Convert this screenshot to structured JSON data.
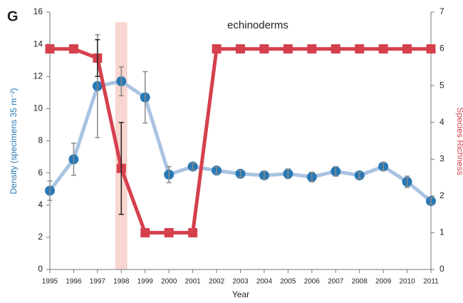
{
  "chart_data": {
    "type": "line",
    "panel_label": "G",
    "title": "echinoderms",
    "x_label": "Year",
    "y_label": "Density (specimens 35 m⁻²)",
    "y2_label": "Species Richness",
    "x": [
      1995,
      1996,
      1997,
      1998,
      1999,
      2000,
      2001,
      2002,
      2003,
      2004,
      2005,
      2006,
      2007,
      2008,
      2009,
      2010,
      2011
    ],
    "xlim": [
      1995,
      2011
    ],
    "xticks": [
      1995,
      1996,
      1997,
      1998,
      1999,
      2000,
      2001,
      2002,
      2003,
      2004,
      2005,
      2006,
      2007,
      2008,
      2009,
      2010,
      2011
    ],
    "ylim": [
      0,
      16
    ],
    "yticks": [
      0,
      2,
      4,
      6,
      8,
      10,
      12,
      14,
      16
    ],
    "y2lim": [
      0,
      7
    ],
    "y2ticks": [
      0,
      1,
      2,
      3,
      4,
      5,
      6,
      7
    ],
    "highlight_x": 1998,
    "highlight_color": "#f9d6cf",
    "series": [
      {
        "name": "Density",
        "axis": "y",
        "color": "#aac3e2",
        "marker_color": "#2878b5",
        "error_color": "#8a8a8a",
        "marker": "circle",
        "values": [
          4.9,
          6.85,
          11.4,
          11.7,
          10.7,
          5.9,
          6.4,
          6.15,
          5.95,
          5.85,
          5.95,
          5.75,
          6.1,
          5.85,
          6.4,
          5.45,
          4.25
        ],
        "errors": [
          0.6,
          1.0,
          3.2,
          0.9,
          1.6,
          0.5,
          0.2,
          0.2,
          0.2,
          0.25,
          0.3,
          0.3,
          0.3,
          0.2,
          0.25,
          0.35,
          0.2
        ]
      },
      {
        "name": "Species Richness",
        "axis": "y2",
        "color": "#d5404d",
        "marker_color": "#d5404d",
        "error_color": "#222222",
        "marker": "square",
        "values": [
          6,
          6,
          5.75,
          2.75,
          1,
          1,
          1,
          6,
          6,
          6,
          6,
          6,
          6,
          6,
          6,
          6,
          6
        ],
        "errors": [
          null,
          null,
          0.5,
          1.25,
          null,
          null,
          null,
          null,
          null,
          null,
          null,
          null,
          null,
          null,
          null,
          null,
          null
        ]
      }
    ]
  }
}
